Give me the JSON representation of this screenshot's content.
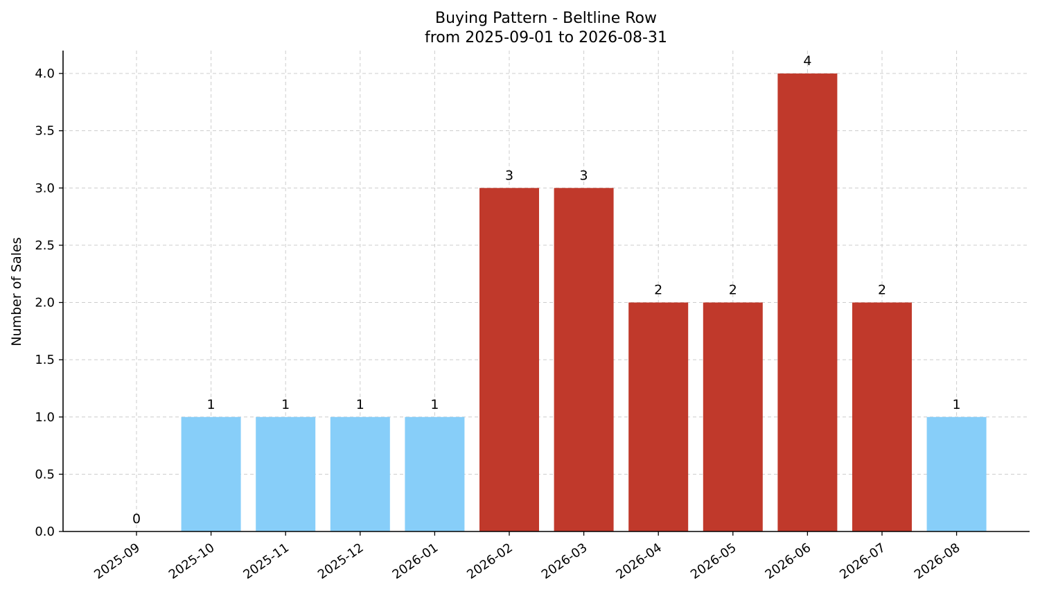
{
  "chart_data": {
    "type": "bar",
    "title": "Buying Pattern - Beltline Row",
    "subtitle": "from 2025-09-01 to 2026-08-31",
    "xlabel": "",
    "ylabel": "Number of Sales",
    "categories": [
      "2025-09",
      "2025-10",
      "2025-11",
      "2025-12",
      "2026-01",
      "2026-02",
      "2026-03",
      "2026-04",
      "2026-05",
      "2026-06",
      "2026-07",
      "2026-08"
    ],
    "values": [
      0,
      1,
      1,
      1,
      1,
      3,
      3,
      2,
      2,
      4,
      2,
      1
    ],
    "data_labels": [
      "0",
      "1",
      "1",
      "1",
      "1",
      "3",
      "3",
      "2",
      "2",
      "4",
      "2",
      "1"
    ],
    "bar_colors": [
      "#87cef9",
      "#87cef9",
      "#87cef9",
      "#87cef9",
      "#87cef9",
      "#c0392b",
      "#c0392b",
      "#c0392b",
      "#c0392b",
      "#c0392b",
      "#c0392b",
      "#87cef9"
    ],
    "ylim": [
      0,
      4.2
    ],
    "yticks": [
      0.0,
      0.5,
      1.0,
      1.5,
      2.0,
      2.5,
      3.0,
      3.5,
      4.0
    ],
    "ytick_labels": [
      "0.0",
      "0.5",
      "1.0",
      "1.5",
      "2.0",
      "2.5",
      "3.0",
      "3.5",
      "4.0"
    ],
    "grid": true
  }
}
